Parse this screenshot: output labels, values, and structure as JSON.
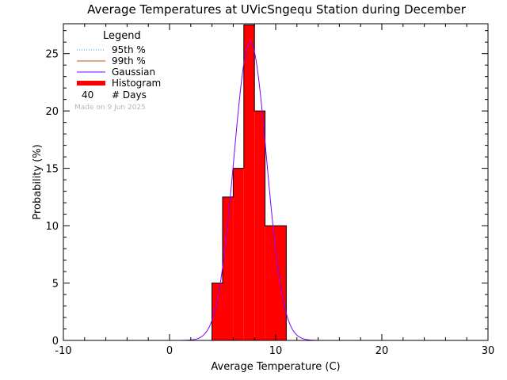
{
  "chart_data": {
    "type": "bar",
    "title": "Average Temperatures at UVicSngequ Station during December",
    "xlabel": "Average Temperature (C)",
    "ylabel": "Probability (%)",
    "xlim": [
      -10,
      30
    ],
    "ylim": [
      0,
      27.6
    ],
    "x_ticks": [
      -10,
      0,
      10,
      20,
      30
    ],
    "y_ticks": [
      0,
      5,
      10,
      15,
      20,
      25
    ],
    "histogram": {
      "bin_edges": [
        4,
        5,
        6,
        7,
        8,
        9,
        10,
        11
      ],
      "values": [
        5.0,
        12.5,
        15.0,
        27.5,
        20.0,
        10.0,
        10.0
      ],
      "color": "#ff0000"
    },
    "gaussian": {
      "mean": 7.6,
      "sigma": 1.55,
      "peak": 26.0,
      "color": "#8000ff"
    },
    "legend": {
      "title": "Legend",
      "items": [
        {
          "label": "95th %",
          "style": "dotted",
          "color": "#1a8fd6"
        },
        {
          "label": "99th %",
          "style": "solid",
          "color": "#b3561a"
        },
        {
          "label": "Gaussian",
          "style": "solid",
          "color": "#8000ff"
        },
        {
          "label": "Histogram",
          "style": "thick",
          "color": "#ff0000"
        }
      ],
      "days_value": "40",
      "days_label": "# Days"
    },
    "watermark": "Made on 9 Jun 2025",
    "grid": false,
    "legend_position": "top-left"
  }
}
